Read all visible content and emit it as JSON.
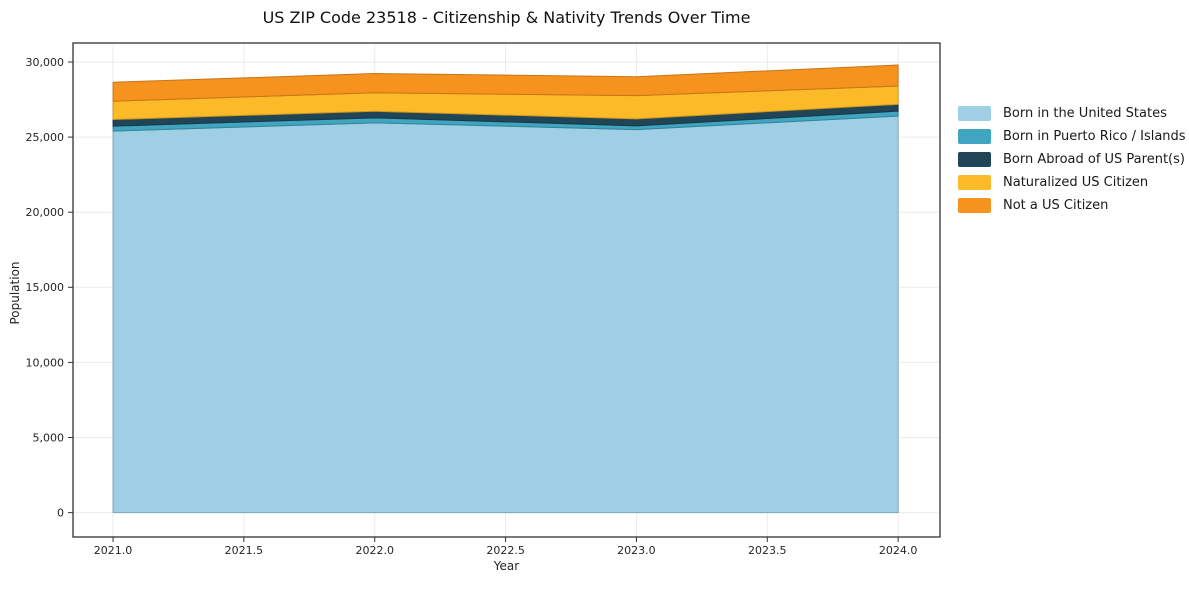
{
  "title": "US ZIP Code 23518 - Citizenship & Nativity Trends Over Time",
  "chart_data": {
    "type": "area",
    "stacked": true,
    "title": "US ZIP Code 23518 - Citizenship & Nativity Trends Over Time",
    "xlabel": "Year",
    "ylabel": "Population",
    "x": [
      2021,
      2022,
      2023,
      2024
    ],
    "series": [
      {
        "name": "Born in the United States",
        "color": "#9fcfe4",
        "values": [
          25400,
          25950,
          25500,
          26400
        ]
      },
      {
        "name": "Born in Puerto Rico / Islands",
        "color": "#3fa5c0",
        "values": [
          330,
          330,
          250,
          330
        ]
      },
      {
        "name": "Born Abroad of US Parent(s)",
        "color": "#1f4557",
        "values": [
          440,
          440,
          460,
          450
        ]
      },
      {
        "name": "Naturalized US Citizen",
        "color": "#fcba28",
        "values": [
          1220,
          1230,
          1550,
          1220
        ]
      },
      {
        "name": "Not a US Citizen",
        "color": "#f6931e",
        "values": [
          1260,
          1280,
          1260,
          1400
        ]
      }
    ],
    "totals": [
      28650,
      29230,
      29020,
      29800
    ],
    "xticks": {
      "values": [
        2021.0,
        2021.5,
        2022.0,
        2022.5,
        2023.0,
        2023.5,
        2024.0
      ],
      "labels": [
        "2021.0",
        "2021.5",
        "2022.0",
        "2022.5",
        "2023.0",
        "2023.5",
        "2024.0"
      ]
    },
    "yticks": {
      "values": [
        0,
        5000,
        10000,
        15000,
        20000,
        25000,
        30000
      ],
      "labels": [
        "0",
        "5,000",
        "10,000",
        "15,000",
        "20,000",
        "25,000",
        "30,000"
      ]
    },
    "xlim": [
      2020.847,
      2024.16
    ],
    "ylim": [
      -1622,
      31264
    ],
    "grid": true,
    "legend_position": "right",
    "style": {
      "grid_color": "#ebebeb",
      "spine_color": "#222222",
      "tick_color": "#333333",
      "tick_label_color": "#262626",
      "background": "#ffffff"
    }
  }
}
